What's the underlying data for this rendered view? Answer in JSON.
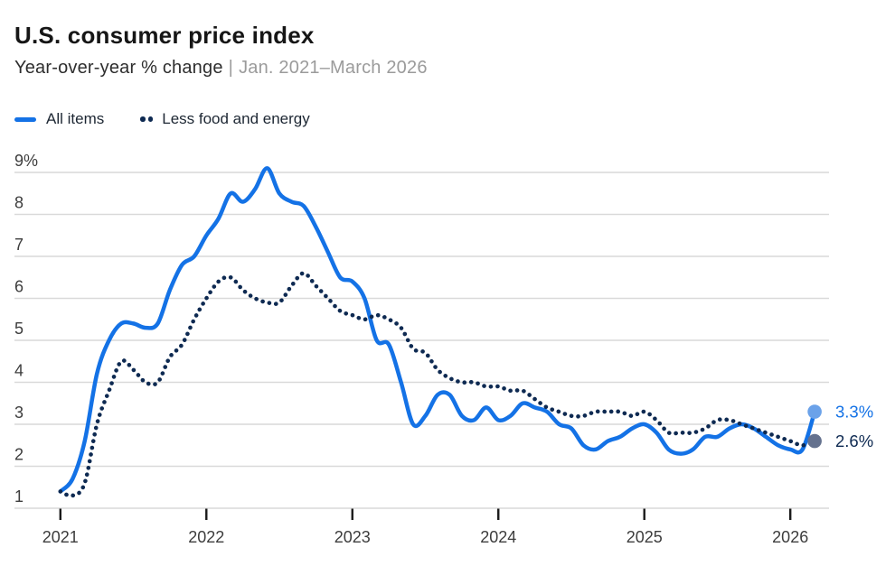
{
  "header": {
    "title": "U.S. consumer price index",
    "subtitle": {
      "metric": "Year-over-year % change",
      "separator": "|",
      "range": "Jan. 2021–March 2026"
    }
  },
  "legend": [
    {
      "label": "All items"
    },
    {
      "label": "Less food and energy"
    }
  ],
  "chart_data": {
    "type": "line",
    "title": "U.S. consumer price index",
    "subtitle": "Year-over-year % change | Jan. 2021–March 2026",
    "x_start": "2021-01",
    "x_end": "2026-03",
    "x_frequency": "monthly",
    "grid": true,
    "legend_position": "top-left",
    "ylim": [
      1,
      9
    ],
    "y_axis": {
      "ticks": [
        {
          "label": "9%",
          "value": 9
        },
        {
          "label": "8",
          "value": 8
        },
        {
          "label": "7",
          "value": 7
        },
        {
          "label": "6",
          "value": 6
        },
        {
          "label": "5",
          "value": 5
        },
        {
          "label": "4",
          "value": 4
        },
        {
          "label": "3",
          "value": 3
        },
        {
          "label": "2",
          "value": 2
        },
        {
          "label": "1",
          "value": 1
        }
      ]
    },
    "x_axis": {
      "ticks": [
        {
          "label": "2021",
          "month_index": 0
        },
        {
          "label": "2022",
          "month_index": 12
        },
        {
          "label": "2023",
          "month_index": 24
        },
        {
          "label": "2024",
          "month_index": 36
        },
        {
          "label": "2025",
          "month_index": 48
        },
        {
          "label": "2026",
          "month_index": 60
        }
      ]
    },
    "colors": {
      "grid": "#d9d9d9",
      "tick": "#1a1a1a",
      "axis_text": "#3d3d3d"
    },
    "series": [
      {
        "name": "All items",
        "line_style": "solid",
        "color": "#1472e6",
        "marker_color": "#6ba2e9",
        "end_label": "3.3%",
        "values": [
          1.4,
          1.7,
          2.6,
          4.2,
          5.0,
          5.4,
          5.4,
          5.3,
          5.4,
          6.2,
          6.8,
          7.0,
          7.5,
          7.9,
          8.5,
          8.3,
          8.6,
          9.1,
          8.5,
          8.3,
          8.2,
          7.7,
          7.1,
          6.5,
          6.4,
          6.0,
          5.0,
          4.9,
          4.0,
          3.0,
          3.2,
          3.7,
          3.7,
          3.2,
          3.1,
          3.4,
          3.1,
          3.2,
          3.5,
          3.4,
          3.3,
          3.0,
          2.9,
          2.5,
          2.4,
          2.6,
          2.7,
          2.9,
          3.0,
          2.8,
          2.4,
          2.3,
          2.4,
          2.7,
          2.7,
          2.9,
          3.0,
          2.9,
          2.7,
          2.5,
          2.4,
          2.4,
          3.3
        ]
      },
      {
        "name": "Less food and energy",
        "line_style": "dotted",
        "color": "#0e2a52",
        "marker_color": "#64718e",
        "end_label": "2.6%",
        "values": [
          1.4,
          1.3,
          1.6,
          3.0,
          3.8,
          4.5,
          4.3,
          4.0,
          4.0,
          4.6,
          4.9,
          5.5,
          6.0,
          6.4,
          6.5,
          6.2,
          6.0,
          5.9,
          5.9,
          6.3,
          6.6,
          6.3,
          6.0,
          5.7,
          5.6,
          5.5,
          5.6,
          5.5,
          5.3,
          4.8,
          4.7,
          4.3,
          4.1,
          4.0,
          4.0,
          3.9,
          3.9,
          3.8,
          3.8,
          3.6,
          3.4,
          3.3,
          3.2,
          3.2,
          3.3,
          3.3,
          3.3,
          3.2,
          3.3,
          3.1,
          2.8,
          2.8,
          2.8,
          2.9,
          3.1,
          3.1,
          3.0,
          2.9,
          2.8,
          2.7,
          2.6,
          2.5,
          2.6
        ]
      }
    ]
  }
}
